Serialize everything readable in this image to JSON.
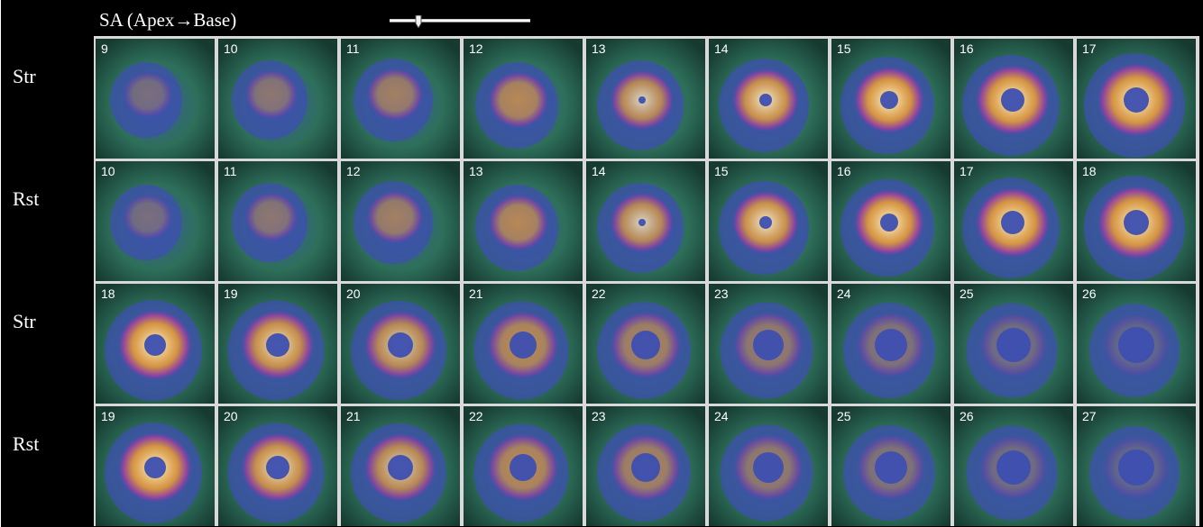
{
  "header": {
    "view_title": "SA (Apex→Base)",
    "slider_icon": "slider-thumb-icon"
  },
  "rows": [
    {
      "label": "Str",
      "slices": [
        "9",
        "10",
        "11",
        "12",
        "13",
        "14",
        "15",
        "16",
        "17"
      ]
    },
    {
      "label": "Rst",
      "slices": [
        "10",
        "11",
        "12",
        "13",
        "14",
        "15",
        "16",
        "17",
        "18"
      ]
    },
    {
      "label": "Str",
      "slices": [
        "18",
        "19",
        "20",
        "21",
        "22",
        "23",
        "24",
        "25",
        "26"
      ]
    },
    {
      "label": "Rst",
      "slices": [
        "19",
        "20",
        "21",
        "22",
        "23",
        "24",
        "25",
        "26",
        "27"
      ]
    }
  ],
  "colors": {
    "background": "#000000",
    "tissue_low": "#2e6f5a",
    "tissue_mid": "#3d4fb0",
    "tissue_high": "#f0a030",
    "tissue_peak": "#fff6d0"
  }
}
